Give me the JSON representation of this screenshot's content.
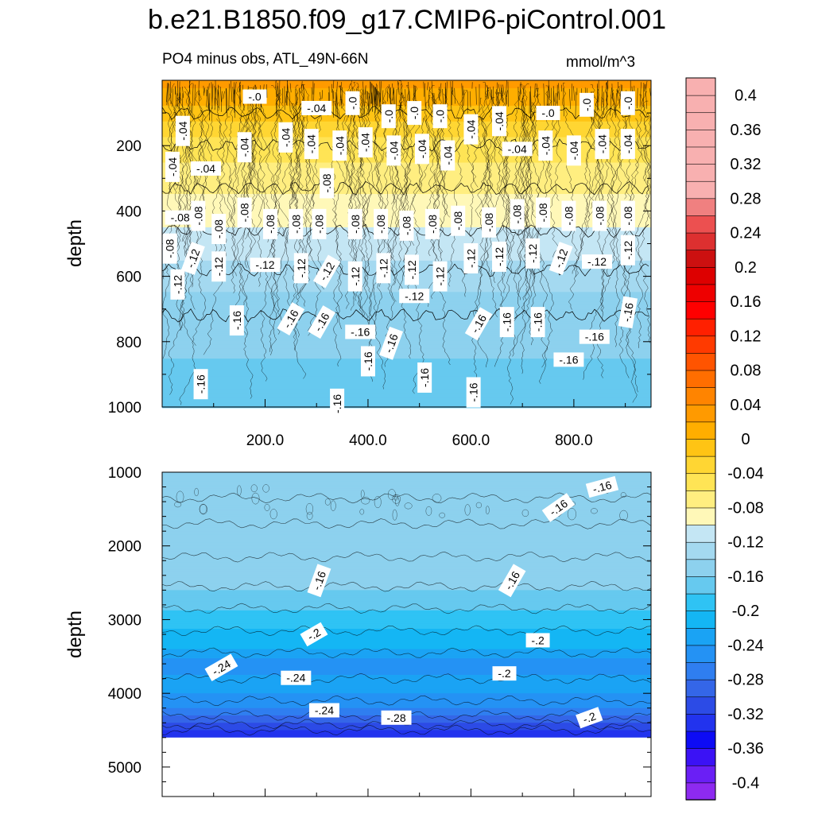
{
  "title": "b.e21.B1850.f09_g17.CMIP6-piControl.001",
  "subtitle": "PO4 minus obs, ATL_49N-66N",
  "units": "mmol/m^3",
  "colors": {
    "level_colors": [
      "#8d2af0",
      "#6a1ff5",
      "#3b12f5",
      "#0d0bf5",
      "#2233ee",
      "#2c4be6",
      "#3466e8",
      "#2f7ef0",
      "#2492f4",
      "#1aa3f4",
      "#14b6f4",
      "#2fc3f4",
      "#66c9ef",
      "#8dd1ee",
      "#a4d9f0",
      "#c4e6f4",
      "#fff8b8",
      "#ffee80",
      "#ffe455",
      "#ffd633",
      "#ffc414",
      "#ffae00",
      "#ff9a00",
      "#ff8400",
      "#ff6e00",
      "#ff5400",
      "#ff3a00",
      "#ff2000",
      "#ff0000",
      "#ee0000",
      "#dd0000",
      "#cc1010",
      "#dd3030",
      "#ec5050",
      "#f08080",
      "#f8b0b0"
    ]
  },
  "chart_data": [
    {
      "type": "contour",
      "panel": "upper",
      "title": "PO4 minus obs, ATL_49N-66N",
      "ylabel": "depth",
      "xlabel": "",
      "xlim": [
        0,
        950
      ],
      "ylim": [
        1000,
        0
      ],
      "x_ticks": [
        200,
        400,
        600,
        800
      ],
      "x_tick_labels": [
        "200.0",
        "400.0",
        "600.0",
        "800.0"
      ],
      "y_ticks": [
        200,
        400,
        600,
        800,
        1000
      ],
      "y_tick_labels": [
        "200",
        "400",
        "600",
        "800",
        "1000"
      ],
      "depth_profile": [
        {
          "depth": 25,
          "value": 0.02
        },
        {
          "depth": 60,
          "value": 0.01
        },
        {
          "depth": 100,
          "value": -0.01
        },
        {
          "depth": 150,
          "value": -0.03
        },
        {
          "depth": 200,
          "value": -0.05
        },
        {
          "depth": 300,
          "value": -0.07
        },
        {
          "depth": 400,
          "value": -0.09
        },
        {
          "depth": 500,
          "value": -0.11
        },
        {
          "depth": 600,
          "value": -0.13
        },
        {
          "depth": 700,
          "value": -0.15
        },
        {
          "depth": 850,
          "value": -0.16
        },
        {
          "depth": 1000,
          "value": -0.17
        }
      ],
      "contour_labels": [
        {
          "x": 180,
          "depth": 50,
          "text": "-.0",
          "rot": 0
        },
        {
          "x": 300,
          "depth": 85,
          "text": "-.04",
          "rot": 0
        },
        {
          "x": 370,
          "depth": 70,
          "text": "-.0",
          "rot": 90
        },
        {
          "x": 440,
          "depth": 110,
          "text": "-.0",
          "rot": 90
        },
        {
          "x": 490,
          "depth": 100,
          "text": "-.0",
          "rot": 90
        },
        {
          "x": 540,
          "depth": 110,
          "text": "-.0",
          "rot": 90
        },
        {
          "x": 750,
          "depth": 100,
          "text": "-.0",
          "rot": 0
        },
        {
          "x": 825,
          "depth": 75,
          "text": "-.0",
          "rot": 90
        },
        {
          "x": 905,
          "depth": 70,
          "text": "-.0",
          "rot": 90
        },
        {
          "x": 40,
          "depth": 155,
          "text": "-.04",
          "rot": 90
        },
        {
          "x": 240,
          "depth": 175,
          "text": "-.04",
          "rot": 90
        },
        {
          "x": 290,
          "depth": 195,
          "text": "-.04",
          "rot": 90
        },
        {
          "x": 345,
          "depth": 200,
          "text": "-.04",
          "rot": 90
        },
        {
          "x": 395,
          "depth": 190,
          "text": "-.04",
          "rot": 90
        },
        {
          "x": 450,
          "depth": 215,
          "text": "-.04",
          "rot": 90
        },
        {
          "x": 505,
          "depth": 210,
          "text": "-.04",
          "rot": 90
        },
        {
          "x": 555,
          "depth": 230,
          "text": "-.04",
          "rot": 90
        },
        {
          "x": 600,
          "depth": 150,
          "text": "-.04",
          "rot": 90
        },
        {
          "x": 655,
          "depth": 125,
          "text": "-.04",
          "rot": 90
        },
        {
          "x": 690,
          "depth": 210,
          "text": "-.04",
          "rot": 0
        },
        {
          "x": 745,
          "depth": 200,
          "text": "-.04",
          "rot": 90
        },
        {
          "x": 800,
          "depth": 215,
          "text": "-.04",
          "rot": 90
        },
        {
          "x": 855,
          "depth": 195,
          "text": "-.04",
          "rot": 90
        },
        {
          "x": 905,
          "depth": 195,
          "text": "-.04",
          "rot": 90
        },
        {
          "x": 20,
          "depth": 265,
          "text": "-.04",
          "rot": 90
        },
        {
          "x": 85,
          "depth": 270,
          "text": "-.04",
          "rot": 0
        },
        {
          "x": 160,
          "depth": 205,
          "text": "-.04",
          "rot": 90
        },
        {
          "x": 320,
          "depth": 315,
          "text": "-.08",
          "rot": 90
        },
        {
          "x": 35,
          "depth": 420,
          "text": "-.08",
          "rot": 0
        },
        {
          "x": 70,
          "depth": 415,
          "text": "-.08",
          "rot": 90
        },
        {
          "x": 110,
          "depth": 455,
          "text": "-.08",
          "rot": 90
        },
        {
          "x": 160,
          "depth": 405,
          "text": "-.08",
          "rot": 90
        },
        {
          "x": 210,
          "depth": 440,
          "text": "-.08",
          "rot": 90
        },
        {
          "x": 260,
          "depth": 440,
          "text": "-.08",
          "rot": 90
        },
        {
          "x": 305,
          "depth": 440,
          "text": "-.08",
          "rot": 90
        },
        {
          "x": 375,
          "depth": 440,
          "text": "-.08",
          "rot": 90
        },
        {
          "x": 425,
          "depth": 440,
          "text": "-.08",
          "rot": 90
        },
        {
          "x": 475,
          "depth": 445,
          "text": "-.08",
          "rot": 90
        },
        {
          "x": 525,
          "depth": 440,
          "text": "-.08",
          "rot": 90
        },
        {
          "x": 575,
          "depth": 430,
          "text": "-.08",
          "rot": 90
        },
        {
          "x": 635,
          "depth": 435,
          "text": "-.08",
          "rot": 90
        },
        {
          "x": 690,
          "depth": 410,
          "text": "-.08",
          "rot": 90
        },
        {
          "x": 740,
          "depth": 405,
          "text": "-.08",
          "rot": 90
        },
        {
          "x": 790,
          "depth": 415,
          "text": "-.08",
          "rot": 90
        },
        {
          "x": 850,
          "depth": 415,
          "text": "-.08",
          "rot": 90
        },
        {
          "x": 905,
          "depth": 415,
          "text": "-.08",
          "rot": 90
        },
        {
          "x": 15,
          "depth": 515,
          "text": "-.08",
          "rot": 90
        },
        {
          "x": 60,
          "depth": 545,
          "text": "-.12",
          "rot": 70
        },
        {
          "x": 110,
          "depth": 570,
          "text": "-.12",
          "rot": 90
        },
        {
          "x": 200,
          "depth": 565,
          "text": "-.12",
          "rot": 0
        },
        {
          "x": 270,
          "depth": 575,
          "text": "-.12",
          "rot": 90
        },
        {
          "x": 320,
          "depth": 585,
          "text": "-.12",
          "rot": 60
        },
        {
          "x": 375,
          "depth": 600,
          "text": "-.12",
          "rot": 90
        },
        {
          "x": 430,
          "depth": 575,
          "text": "-.12",
          "rot": 90
        },
        {
          "x": 485,
          "depth": 580,
          "text": "-.12",
          "rot": 90
        },
        {
          "x": 540,
          "depth": 600,
          "text": "-.12",
          "rot": 90
        },
        {
          "x": 600,
          "depth": 545,
          "text": "-.12",
          "rot": 90
        },
        {
          "x": 655,
          "depth": 540,
          "text": "-.12",
          "rot": 90
        },
        {
          "x": 720,
          "depth": 530,
          "text": "-.12",
          "rot": 90
        },
        {
          "x": 775,
          "depth": 545,
          "text": "-.12",
          "rot": 70
        },
        {
          "x": 845,
          "depth": 555,
          "text": "-.12",
          "rot": 0
        },
        {
          "x": 905,
          "depth": 520,
          "text": "-.12",
          "rot": 90
        },
        {
          "x": 30,
          "depth": 625,
          "text": "-.12",
          "rot": 90
        },
        {
          "x": 490,
          "depth": 660,
          "text": "-.12",
          "rot": 0
        },
        {
          "x": 250,
          "depth": 730,
          "text": "-.16",
          "rot": 60
        },
        {
          "x": 310,
          "depth": 740,
          "text": "-.16",
          "rot": 60
        },
        {
          "x": 145,
          "depth": 735,
          "text": "-.16",
          "rot": 90
        },
        {
          "x": 385,
          "depth": 770,
          "text": "-.16",
          "rot": 0
        },
        {
          "x": 445,
          "depth": 805,
          "text": "-.16",
          "rot": 70
        },
        {
          "x": 615,
          "depth": 745,
          "text": "-.16",
          "rot": 60
        },
        {
          "x": 670,
          "depth": 740,
          "text": "-.16",
          "rot": 90
        },
        {
          "x": 730,
          "depth": 740,
          "text": "-.16",
          "rot": 90
        },
        {
          "x": 840,
          "depth": 785,
          "text": "-.16",
          "rot": 0
        },
        {
          "x": 905,
          "depth": 710,
          "text": "-.16",
          "rot": 80
        },
        {
          "x": 400,
          "depth": 860,
          "text": "-.16",
          "rot": 90
        },
        {
          "x": 510,
          "depth": 910,
          "text": "-.16",
          "rot": 90
        },
        {
          "x": 605,
          "depth": 955,
          "text": "-.16",
          "rot": 90
        },
        {
          "x": 790,
          "depth": 855,
          "text": "-.16",
          "rot": 0
        },
        {
          "x": 75,
          "depth": 930,
          "text": "-.16",
          "rot": 90
        },
        {
          "x": 340,
          "depth": 990,
          "text": "-.16",
          "rot": 90
        }
      ]
    },
    {
      "type": "contour",
      "panel": "lower",
      "ylabel": "depth",
      "xlabel": "",
      "xlim": [
        0,
        950
      ],
      "ylim": [
        5400,
        1000
      ],
      "y_ticks": [
        1000,
        2000,
        3000,
        4000,
        5000
      ],
      "y_tick_labels": [
        "1000",
        "2000",
        "3000",
        "4000",
        "5000"
      ],
      "data_bottom_depth": 4600,
      "depth_profile": [
        {
          "depth": 1000,
          "value": -0.16
        },
        {
          "depth": 1400,
          "value": -0.145
        },
        {
          "depth": 2000,
          "value": -0.14
        },
        {
          "depth": 2600,
          "value": -0.16
        },
        {
          "depth": 3000,
          "value": -0.19
        },
        {
          "depth": 3400,
          "value": -0.22
        },
        {
          "depth": 3600,
          "value": -0.25
        },
        {
          "depth": 3900,
          "value": -0.23
        },
        {
          "depth": 4200,
          "value": -0.26
        },
        {
          "depth": 4400,
          "value": -0.3
        },
        {
          "depth": 4600,
          "value": -0.34
        }
      ],
      "contour_labels": [
        {
          "x": 855,
          "depth": 1200,
          "text": "-.16",
          "rot": 15
        },
        {
          "x": 770,
          "depth": 1480,
          "text": "-.16",
          "rot": 35
        },
        {
          "x": 305,
          "depth": 2470,
          "text": "-.16",
          "rot": 70
        },
        {
          "x": 680,
          "depth": 2470,
          "text": "-.16",
          "rot": 60
        },
        {
          "x": 295,
          "depth": 3200,
          "text": "-.2",
          "rot": 30
        },
        {
          "x": 730,
          "depth": 3280,
          "text": "-.2",
          "rot": 0
        },
        {
          "x": 115,
          "depth": 3650,
          "text": "-.24",
          "rot": 30
        },
        {
          "x": 260,
          "depth": 3790,
          "text": "-.24",
          "rot": 0
        },
        {
          "x": 665,
          "depth": 3730,
          "text": "-.2",
          "rot": 0
        },
        {
          "x": 315,
          "depth": 4230,
          "text": "-.24",
          "rot": 0
        },
        {
          "x": 455,
          "depth": 4330,
          "text": "-.28",
          "rot": 0
        },
        {
          "x": 830,
          "depth": 4330,
          "text": "-.2",
          "rot": 20
        }
      ]
    },
    {
      "type": "colorbar",
      "levels": [
        -0.42,
        -0.4,
        -0.38,
        -0.36,
        -0.34,
        -0.32,
        -0.3,
        -0.28,
        -0.26,
        -0.24,
        -0.22,
        -0.2,
        -0.18,
        -0.16,
        -0.14,
        -0.12,
        -0.1,
        -0.08,
        -0.06,
        -0.04,
        -0.02,
        0,
        0.02,
        0.04,
        0.06,
        0.08,
        0.1,
        0.12,
        0.14,
        0.16,
        0.18,
        0.2,
        0.22,
        0.24,
        0.26,
        0.28,
        0.3,
        0.32,
        0.34,
        0.36,
        0.38,
        0.4,
        0.42
      ],
      "tick_labels": [
        {
          "value": 0.4,
          "label": "0.4"
        },
        {
          "value": 0.36,
          "label": "0.36"
        },
        {
          "value": 0.32,
          "label": "0.32"
        },
        {
          "value": 0.28,
          "label": "0.28"
        },
        {
          "value": 0.24,
          "label": "0.24"
        },
        {
          "value": 0.2,
          "label": "0.2"
        },
        {
          "value": 0.16,
          "label": "0.16"
        },
        {
          "value": 0.12,
          "label": "0.12"
        },
        {
          "value": 0.08,
          "label": "0.08"
        },
        {
          "value": 0.04,
          "label": "0.04"
        },
        {
          "value": 0,
          "label": "0"
        },
        {
          "value": -0.04,
          "label": "-0.04"
        },
        {
          "value": -0.08,
          "label": "-0.08"
        },
        {
          "value": -0.12,
          "label": "-0.12"
        },
        {
          "value": -0.16,
          "label": "-0.16"
        },
        {
          "value": -0.2,
          "label": "-0.2"
        },
        {
          "value": -0.24,
          "label": "-0.24"
        },
        {
          "value": -0.28,
          "label": "-0.28"
        },
        {
          "value": -0.32,
          "label": "-0.32"
        },
        {
          "value": -0.36,
          "label": "-0.36"
        },
        {
          "value": -0.4,
          "label": "-0.4"
        }
      ]
    }
  ]
}
